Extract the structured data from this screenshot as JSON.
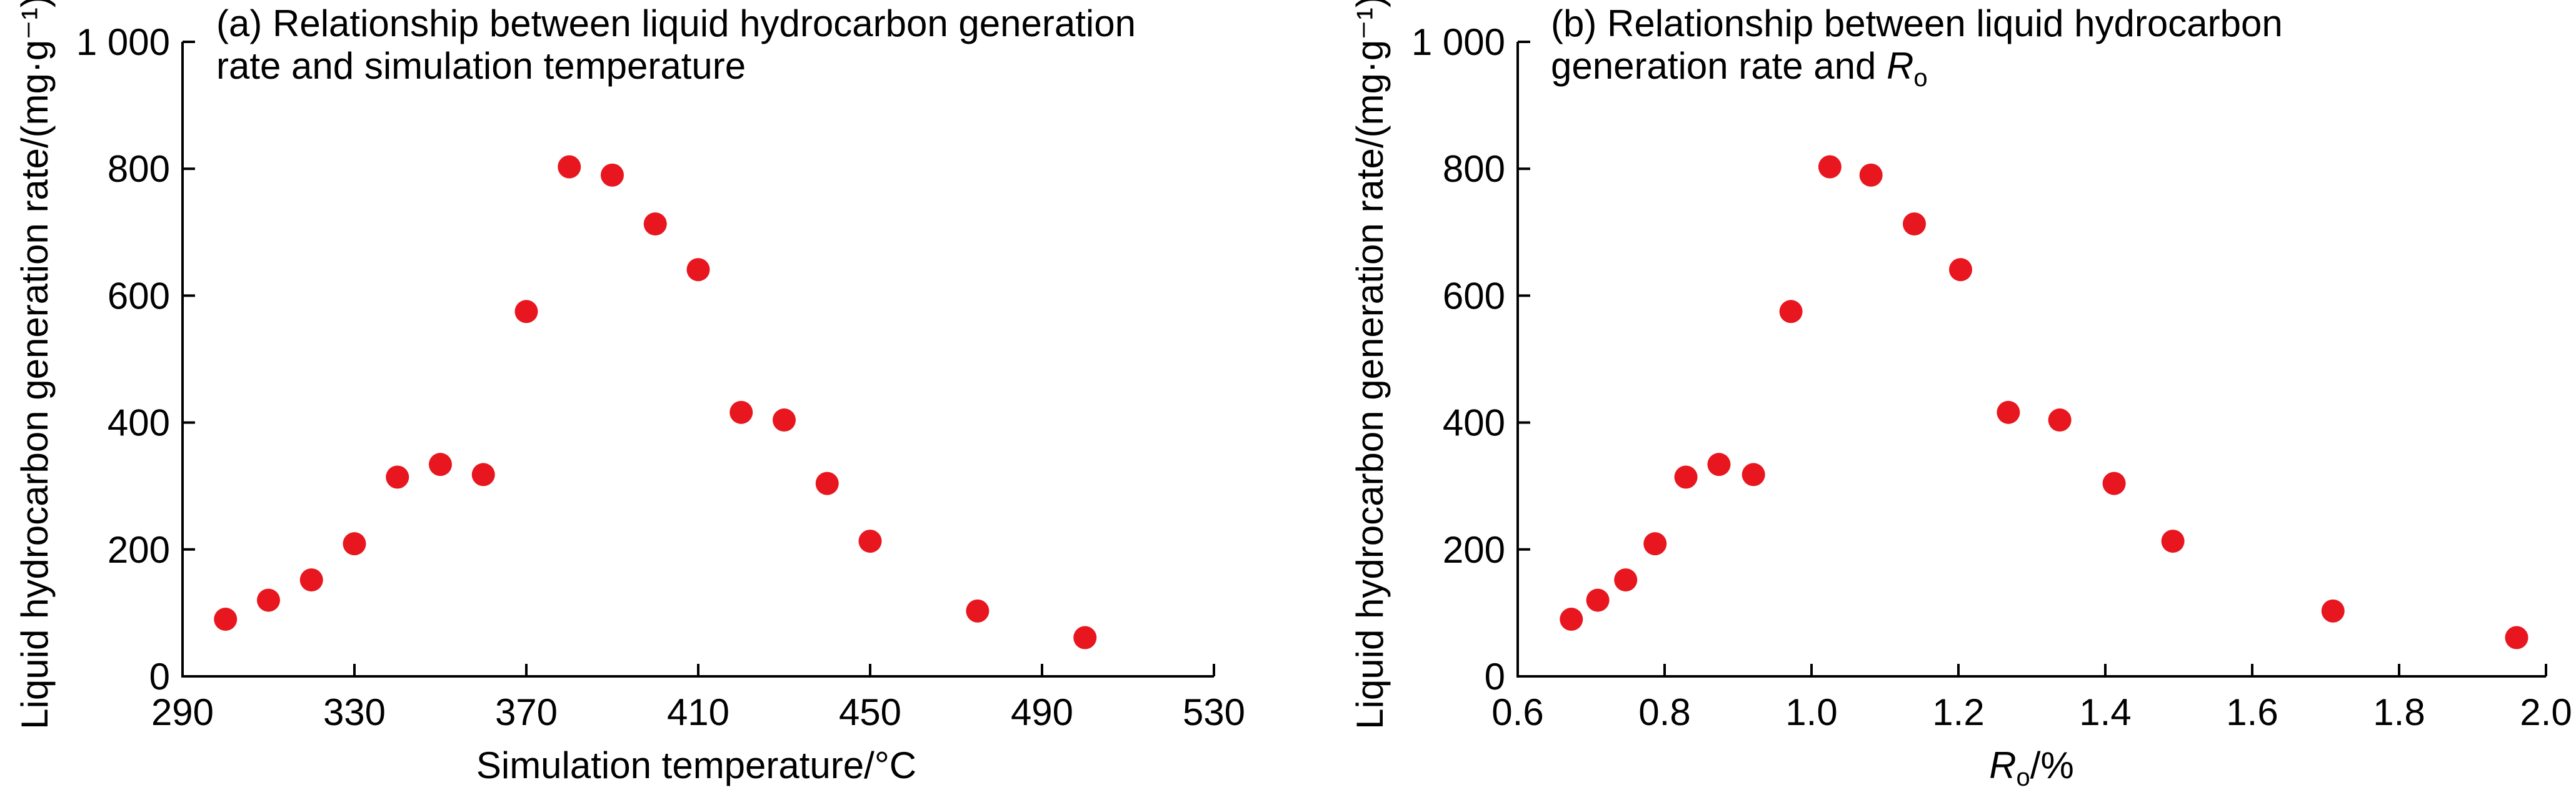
{
  "chart_data": [
    {
      "type": "scatter",
      "panel": "a",
      "title_lines": [
        "(a) Relationship between liquid hydrocarbon generation",
        "rate and simulation temperature"
      ],
      "xlabel": "Simulation temperature/°C",
      "ylabel": "Liquid hydrocarbon generation rate/(mg·g⁻¹)",
      "xlim": [
        290,
        530
      ],
      "ylim": [
        0,
        1000
      ],
      "xticks": [
        290,
        330,
        370,
        410,
        450,
        490,
        530
      ],
      "xtick_labels": [
        "290",
        "330",
        "370",
        "410",
        "450",
        "490",
        "530"
      ],
      "yticks": [
        0,
        200,
        400,
        600,
        800,
        1000
      ],
      "ytick_labels": [
        "0",
        "200",
        "400",
        "600",
        "800",
        "1 000"
      ],
      "grid": false,
      "marker_color": "#e8161e",
      "series": [
        {
          "name": "Liquid hydrocarbon generation rate",
          "x": [
            300,
            310,
            320,
            330,
            340,
            350,
            360,
            370,
            380,
            390,
            400,
            410,
            420,
            430,
            440,
            450,
            475,
            500
          ],
          "y": [
            90,
            120,
            152,
            209,
            314,
            334,
            318,
            575,
            803,
            790,
            713,
            641,
            416,
            404,
            304,
            213,
            103,
            61
          ]
        }
      ]
    },
    {
      "type": "scatter",
      "panel": "b",
      "title_lines": [
        "(b) Relationship between liquid hydrocarbon",
        "generation rate and "
      ],
      "title_italic": "R",
      "title_sub": "o",
      "xlabel_italic": "R",
      "xlabel_sub": "o",
      "xlabel_suffix": "/%",
      "ylabel": "Liquid hydrocarbon generation rate/(mg·g⁻¹)",
      "xlim": [
        0.6,
        2.0
      ],
      "ylim": [
        0,
        1000
      ],
      "xticks": [
        0.6,
        0.8,
        1.0,
        1.2,
        1.4,
        1.6,
        1.8,
        2.0
      ],
      "xtick_labels": [
        "0.6",
        "0.8",
        "1.0",
        "1.2",
        "1.4",
        "1.6",
        "1.8",
        "2.0"
      ],
      "yticks": [
        0,
        200,
        400,
        600,
        800,
        1000
      ],
      "ytick_labels": [
        "0",
        "200",
        "400",
        "600",
        "800",
        "1 000"
      ],
      "grid": false,
      "marker_color": "#e8161e",
      "series": [
        {
          "name": "Liquid hydrocarbon generation rate",
          "x": [
            0.673,
            0.709,
            0.747,
            0.787,
            0.829,
            0.874,
            0.921,
            0.972,
            1.025,
            1.081,
            1.14,
            1.203,
            1.268,
            1.338,
            1.412,
            1.492,
            1.71,
            1.96
          ],
          "y": [
            90,
            120,
            152,
            209,
            314,
            334,
            318,
            575,
            803,
            790,
            713,
            641,
            416,
            404,
            304,
            213,
            103,
            61
          ]
        }
      ]
    }
  ]
}
